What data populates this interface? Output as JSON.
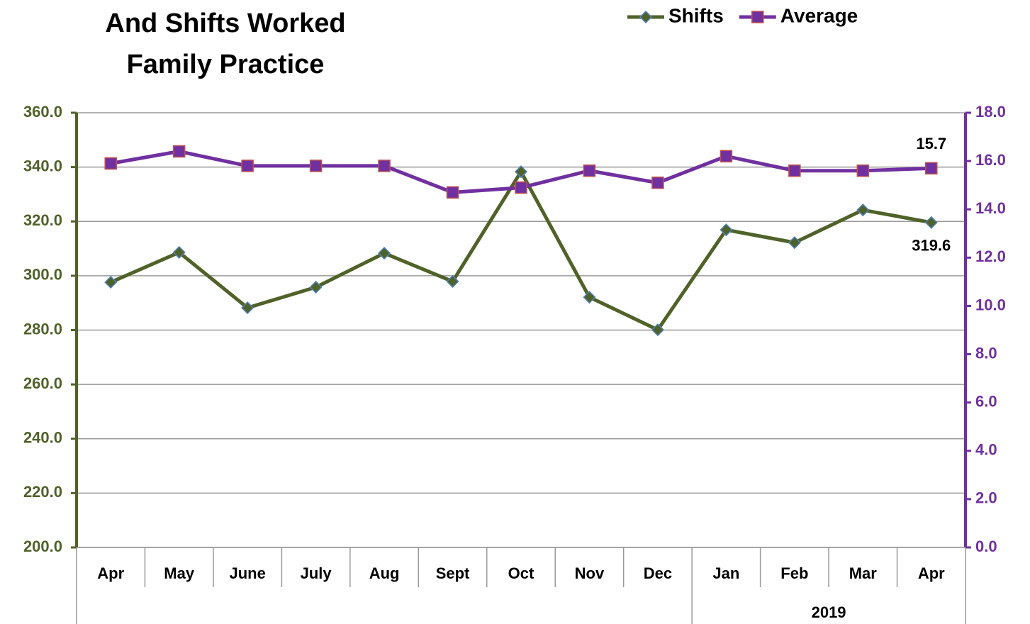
{
  "chart_data": {
    "type": "line",
    "title_lines": [
      "And Shifts Worked",
      "Family Practice"
    ],
    "categories": [
      "Apr",
      "May",
      "June",
      "July",
      "Aug",
      "Sept",
      "Oct",
      "Nov",
      "Dec",
      "Jan",
      "Feb",
      "Mar",
      "Apr"
    ],
    "category_groups": [
      {
        "label": "2019",
        "span": [
          9,
          12
        ]
      }
    ],
    "series": [
      {
        "name": "Shifts",
        "color": "#4f6228",
        "marker": "diamond",
        "axis": "y",
        "values": [
          297.6,
          308.6,
          288.2,
          295.8,
          308.3,
          297.9,
          338.3,
          292.1,
          280.1,
          316.9,
          312.2,
          324.2,
          319.6
        ],
        "value_labels": [
          null,
          null,
          null,
          null,
          null,
          null,
          null,
          null,
          null,
          null,
          null,
          null,
          "319.6"
        ]
      },
      {
        "name": "Average",
        "color": "#7030a0",
        "marker": "square",
        "axis": "y2",
        "values": [
          15.9,
          16.4,
          15.8,
          15.8,
          15.8,
          14.7,
          14.9,
          15.6,
          15.1,
          16.2,
          15.6,
          15.6,
          15.7
        ],
        "value_labels": [
          null,
          null,
          null,
          null,
          null,
          null,
          null,
          null,
          null,
          null,
          null,
          null,
          "15.7"
        ]
      }
    ],
    "ylim": [
      200,
      360
    ],
    "yticks": [
      {
        "value": 200,
        "label": "200.0"
      },
      {
        "value": 220,
        "label": "220.0"
      },
      {
        "value": 240,
        "label": "240.0"
      },
      {
        "value": 260,
        "label": "260.0"
      },
      {
        "value": 280,
        "label": "280.0"
      },
      {
        "value": 300,
        "label": "300.0"
      },
      {
        "value": 320,
        "label": "320.0"
      },
      {
        "value": 340,
        "label": "340.0"
      },
      {
        "value": 360,
        "label": "360.0"
      }
    ],
    "y2lim": [
      0,
      18
    ],
    "y2ticks": [
      {
        "value": 0,
        "label": "0.0"
      },
      {
        "value": 2,
        "label": "2.0"
      },
      {
        "value": 4,
        "label": "4.0"
      },
      {
        "value": 6,
        "label": "6.0"
      },
      {
        "value": 8,
        "label": "8.0"
      },
      {
        "value": 10,
        "label": "10.0"
      },
      {
        "value": 12,
        "label": "12.0"
      },
      {
        "value": 14,
        "label": "14.0"
      },
      {
        "value": 16,
        "label": "16.0"
      },
      {
        "value": 18,
        "label": "18.0"
      }
    ],
    "grid": true,
    "legend": "top-right"
  }
}
